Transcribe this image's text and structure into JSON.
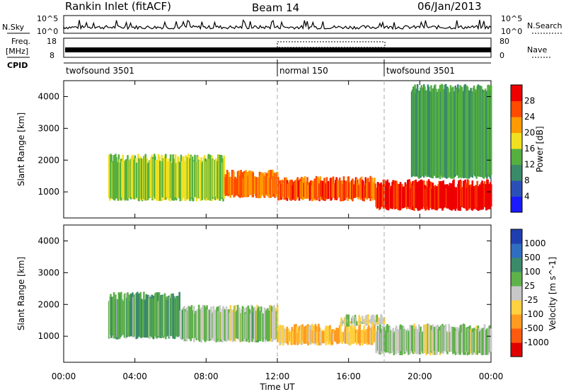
{
  "header": {
    "station": "Rankin Inlet (fitACF)",
    "beam": "Beam 14",
    "date": "06/Jan/2013"
  },
  "strip_labels": {
    "nsky": "N.Sky",
    "nsearch": "N.Search",
    "freq_line1": "Freq.",
    "freq_line2": "[MHz]",
    "nave": "Nave",
    "cpid": "CPID",
    "noise_ticks_left": [
      "10^5",
      "10^0"
    ],
    "noise_ticks_right": [
      "10^5",
      "10^0"
    ],
    "freq_ticks": [
      "18",
      "8"
    ],
    "nave_ticks": [
      "80",
      "0"
    ]
  },
  "cpid_segments": [
    {
      "label": "twofsound 3501",
      "start": 0
    },
    {
      "label": "normal 150",
      "start": 12
    },
    {
      "label": "twofsound 3501",
      "start": 18
    }
  ],
  "x_axis": {
    "label": "Time UT",
    "ticks": [
      "00:00",
      "04:00",
      "08:00",
      "12:00",
      "16:00",
      "20:00",
      "00:00"
    ]
  },
  "panels": {
    "power": {
      "ylabel": "Slant Range [km]",
      "yticks": [
        "1000",
        "2000",
        "3000",
        "4000"
      ],
      "cbar_label": "Power [dB]",
      "cbar_ticks": [
        "4",
        "8",
        "12",
        "16",
        "20",
        "24",
        "28"
      ],
      "cbar_colors": [
        "#1a1aff",
        "#2a50b8",
        "#3a8a6a",
        "#55b040",
        "#f0e020",
        "#ff9a00",
        "#ff4a00",
        "#ee0000"
      ]
    },
    "velocity": {
      "ylabel": "Slant Range [km]",
      "yticks": [
        "1000",
        "2000",
        "3000",
        "4000"
      ],
      "cbar_label": "Velocity [m s^-1]",
      "cbar_ticks": [
        "1000",
        "500",
        "100",
        "25",
        "-25",
        "-100",
        "-500",
        "-1000"
      ],
      "cbar_colors": [
        "#1f3fb0",
        "#2f6ec0",
        "#3b8a6a",
        "#5fb24a",
        "#c8c8c8",
        "#ffd040",
        "#ff9a20",
        "#ff5a10",
        "#e00000"
      ]
    }
  },
  "chart_data": [
    {
      "type": "heatmap",
      "title": "Power",
      "xlabel": "Time UT",
      "ylabel": "Slant Range [km]",
      "xlim": [
        0,
        24
      ],
      "ylim": [
        180,
        4500
      ],
      "zlabel": "Power [dB]",
      "zlim": [
        0,
        32
      ],
      "regions": [
        {
          "t0": 2.5,
          "t1": 9.0,
          "r0": 700,
          "r1": 2200,
          "level": 16
        },
        {
          "t0": 9.0,
          "t1": 12.0,
          "r0": 800,
          "r1": 1700,
          "level": 24
        },
        {
          "t0": 12.0,
          "t1": 17.5,
          "r0": 700,
          "r1": 1500,
          "level": 26
        },
        {
          "t0": 17.5,
          "t1": 24.0,
          "r0": 400,
          "r1": 1400,
          "level": 30
        },
        {
          "t0": 19.5,
          "t1": 24.0,
          "r0": 1400,
          "r1": 4400,
          "level": 12
        }
      ]
    },
    {
      "type": "heatmap",
      "title": "Velocity",
      "xlabel": "Time UT",
      "ylabel": "Slant Range [km]",
      "xlim": [
        0,
        24
      ],
      "ylim": [
        180,
        4500
      ],
      "zlabel": "Velocity [m s^-1]",
      "zlim": [
        -1000,
        1000
      ],
      "regions": [
        {
          "t0": 2.5,
          "t1": 6.5,
          "r0": 900,
          "r1": 2400,
          "level": 300
        },
        {
          "t0": 6.5,
          "t1": 12.0,
          "r0": 800,
          "r1": 2000,
          "level": 100
        },
        {
          "t0": 12.0,
          "t1": 17.5,
          "r0": 700,
          "r1": 1400,
          "level": -300
        },
        {
          "t0": 15.5,
          "t1": 18.0,
          "r0": 1300,
          "r1": 1700,
          "level": 0
        },
        {
          "t0": 17.5,
          "t1": 24.0,
          "r0": 400,
          "r1": 1400,
          "level": 80
        }
      ]
    }
  ]
}
